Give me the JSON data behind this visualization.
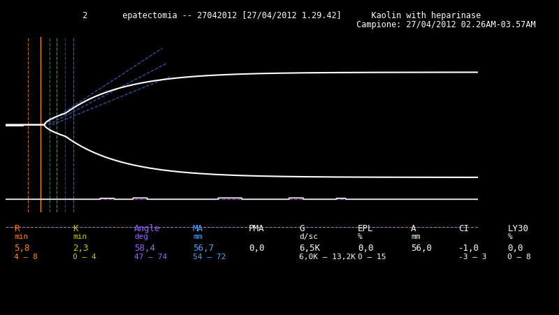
{
  "title_line1": "  2       epatectomia -- 27042012 [27/04/2012 1.29.42]      Kaolin with heparinase",
  "title_line2": "                                                         Campione: 27/04/2012 02.26AM-03.57AM",
  "bg_color": "#000000",
  "teg_color": "#ffffff",
  "purple_dash1": "#9933bb",
  "purple_dash2": "#cc88dd",
  "vline_orange": "#cc7700",
  "vline_orange2": "#ff9900",
  "vline_green1": "#00aa00",
  "vline_green2": "#00cc00",
  "vline_blue1": "#3333cc",
  "vline_blue2": "#5555ff",
  "angle_blue": "#4466cc",
  "params": [
    {
      "label": "R",
      "sub": "min",
      "value": "5,8",
      "range": "4 — 8",
      "col_label": "#ff8800",
      "col_value": "#ff8800",
      "col_range": "#ff8800"
    },
    {
      "label": "K",
      "sub": "min",
      "value": "2,3",
      "range": "0 — 4",
      "col_label": "#cccc00",
      "col_value": "#cccc00",
      "col_range": "#cccc00"
    },
    {
      "label": "Angle",
      "sub": "deg",
      "value": "58,4",
      "range": "47 — 74",
      "col_label": "#9966ff",
      "col_value": "#9966ff",
      "col_range": "#9966ff"
    },
    {
      "label": "MA",
      "sub": "mm",
      "value": "56,7",
      "range": "54 — 72",
      "col_label": "#44aaff",
      "col_value": "#44aaff",
      "col_range": "#44aaff"
    },
    {
      "label": "PMA",
      "sub": "",
      "value": "0,0",
      "range": "",
      "col_label": "#ffffff",
      "col_value": "#ffffff",
      "col_range": "#ffffff"
    },
    {
      "label": "G",
      "sub": "d/sc",
      "value": "6,5K",
      "range": "6,0K — 13,2K",
      "col_label": "#ffffff",
      "col_value": "#ffffff",
      "col_range": "#ffffff"
    },
    {
      "label": "EPL",
      "sub": "%",
      "value": "0,0",
      "range": "0 — 15",
      "col_label": "#ffffff",
      "col_value": "#ffffff",
      "col_range": "#ffffff"
    },
    {
      "label": "A",
      "sub": "mm",
      "value": "56,0",
      "range": "",
      "col_label": "#ffffff",
      "col_value": "#ffffff",
      "col_range": "#ffffff"
    },
    {
      "label": "CI",
      "sub": "",
      "value": "-1,0",
      "range": "-3 — 3",
      "col_label": "#ffffff",
      "col_value": "#ffffff",
      "col_range": "#ffffff"
    },
    {
      "label": "LY30",
      "sub": "%",
      "value": "0,0",
      "range": "0 — 8",
      "col_label": "#ffffff",
      "col_value": "#ffffff",
      "col_range": "#ffffff"
    }
  ]
}
